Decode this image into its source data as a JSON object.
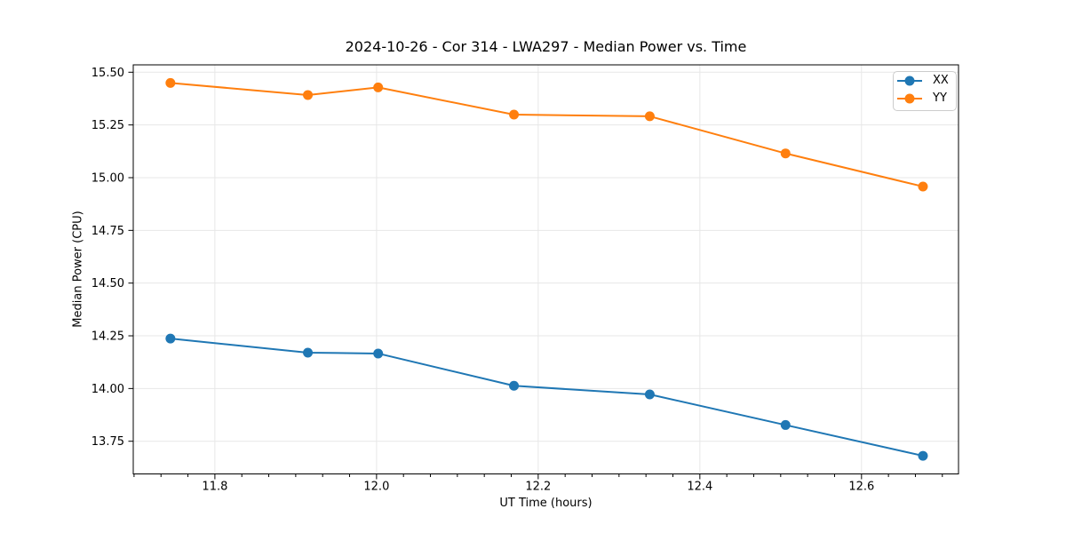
{
  "chart_data": {
    "type": "line",
    "title": "2024-10-26 - Cor 314 - LWA297 - Median Power vs. Time",
    "xlabel": "UT Time (hours)",
    "ylabel": "Median Power (CPU)",
    "xlim": [
      11.699,
      12.72
    ],
    "ylim": [
      13.595,
      15.535
    ],
    "xticks": [
      11.8,
      12.0,
      12.2,
      12.4,
      12.6
    ],
    "xtick_labels": [
      "11.8",
      "12.0",
      "12.2",
      "12.4",
      "12.6"
    ],
    "yticks": [
      13.75,
      14.0,
      14.25,
      14.5,
      14.75,
      15.0,
      15.25,
      15.5
    ],
    "ytick_labels": [
      "13.75",
      "14.00",
      "14.25",
      "14.50",
      "14.75",
      "15.00",
      "15.25",
      "15.50"
    ],
    "x_minor_step": 0.0333333,
    "grid": true,
    "legend_position": "upper right",
    "x": [
      11.745,
      11.915,
      12.002,
      12.17,
      12.338,
      12.506,
      12.676
    ],
    "series": [
      {
        "name": "XX",
        "color": "#1f77b4",
        "values": [
          14.237,
          14.17,
          14.166,
          14.013,
          13.972,
          13.827,
          13.681
        ]
      },
      {
        "name": "YY",
        "color": "#ff7f0e",
        "values": [
          15.449,
          15.392,
          15.428,
          15.299,
          15.291,
          15.115,
          14.958
        ]
      }
    ],
    "colors": {
      "background": "#ffffff",
      "grid": "#e7e7e7",
      "spine": "#000000",
      "text": "#000000"
    }
  }
}
